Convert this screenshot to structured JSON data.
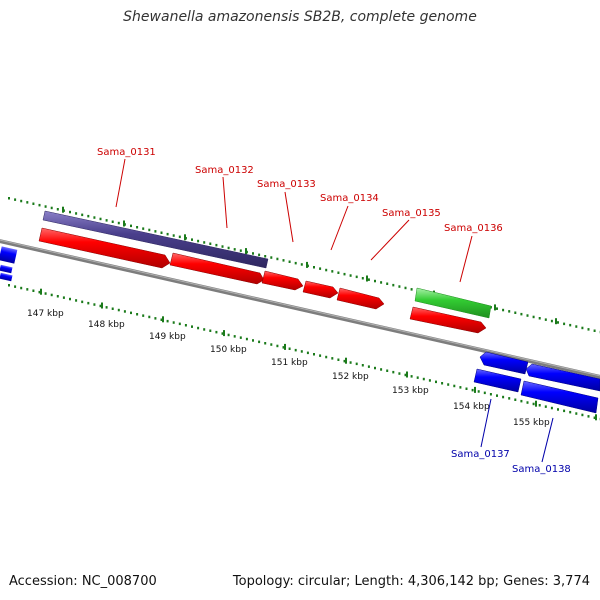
{
  "title": "Shewanella amazonensis SB2B, complete genome",
  "footer": {
    "accession": "Accession: NC_008700",
    "summary": "Topology: circular; Length: 4,306,142 bp; Genes: 3,774"
  },
  "ruler": {
    "labels": [
      "147 kbp",
      "148 kbp",
      "149 kbp",
      "150 kbp",
      "151 kbp",
      "152 kbp",
      "153 kbp",
      "154 kbp",
      "155 kbp"
    ]
  },
  "genes": {
    "top_labels": [
      "Sama_0131",
      "Sama_0132",
      "Sama_0133",
      "Sama_0134",
      "Sama_0135",
      "Sama_0136"
    ],
    "bottom_labels": [
      "Sama_0137",
      "Sama_0138"
    ]
  },
  "colors": {
    "forward_cds": "#ff0000",
    "reverse_cds": "#0000ff",
    "operon": "#4a3f8c",
    "rna": "#33cc33",
    "backbone": "#808080",
    "ticks": "#1a7a1a"
  }
}
